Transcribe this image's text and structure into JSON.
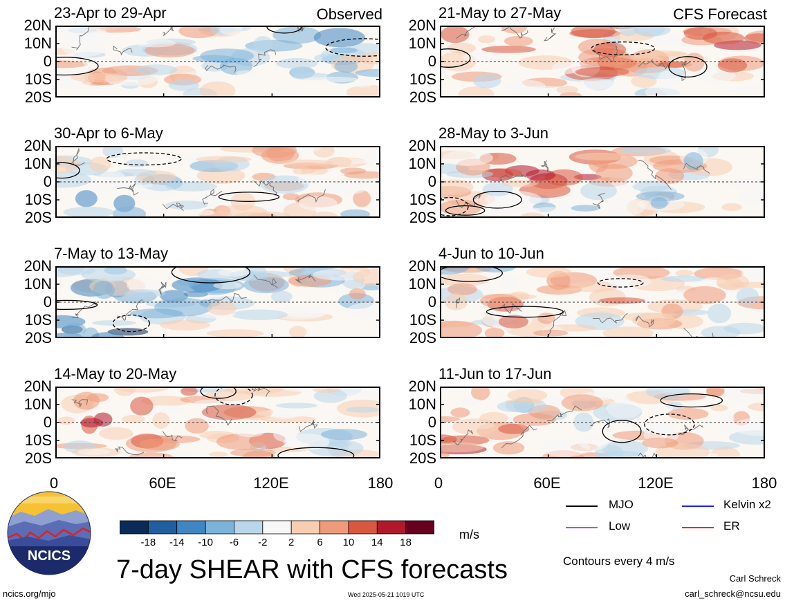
{
  "panels": [
    {
      "title": "23-Apr to 29-Apr",
      "corner_label": "Observed"
    },
    {
      "title": "30-Apr to 6-May",
      "corner_label": ""
    },
    {
      "title": "7-May to 13-May",
      "corner_label": ""
    },
    {
      "title": "14-May to 20-May",
      "corner_label": ""
    },
    {
      "title": "21-May to 27-May",
      "corner_label": "CFS Forecast"
    },
    {
      "title": "28-May to 3-Jun",
      "corner_label": ""
    },
    {
      "title": "4-Jun to 10-Jun",
      "corner_label": ""
    },
    {
      "title": "11-Jun to 17-Jun",
      "corner_label": ""
    }
  ],
  "lat_labels": [
    "20N",
    "10N",
    "0",
    "10S",
    "20S"
  ],
  "lon_labels": [
    "0",
    "60E",
    "120E",
    "180"
  ],
  "colorbar": {
    "ticks": [
      "-18",
      "-14",
      "-10",
      "-6",
      "-2",
      "2",
      "6",
      "10",
      "14",
      "18"
    ],
    "units": "m/s",
    "colors": [
      "#0a2b59",
      "#1f5fa0",
      "#3f87c2",
      "#7cb3da",
      "#b9d7eb",
      "#f7f7f7",
      "#f8cdb2",
      "#ef9a7a",
      "#d9583f",
      "#b2182b",
      "#67001f"
    ]
  },
  "legend": {
    "items": [
      {
        "label": "MJO",
        "color": "#000000"
      },
      {
        "label": "Kelvin x2",
        "color": "#1f1fff"
      },
      {
        "label": "Low",
        "color": "#a050ff"
      },
      {
        "label": "ER",
        "color": "#ff2020"
      }
    ],
    "note": "Contours every 4 m/s"
  },
  "title": "7-day SHEAR with CFS forecasts",
  "footer": {
    "url": "ncics.org/mjo",
    "timestamp": "Wed 2025-05-21 1019 UTC",
    "author": "Carl Schreck",
    "email": "carl_schreck@ncsu.edu"
  },
  "logo": {
    "text": "NCICS"
  },
  "chart_data": {
    "type": "heatmap",
    "variable": "7-day SHEAR",
    "units": "m/s",
    "x_axis": {
      "ticks": [
        "0",
        "60E",
        "120E",
        "180"
      ],
      "range": [
        0,
        180
      ]
    },
    "y_axis": {
      "ticks": [
        "20N",
        "10N",
        "0",
        "10S",
        "20S"
      ],
      "range": [
        -20,
        20
      ]
    },
    "color_levels": [
      -18,
      -14,
      -10,
      -6,
      -2,
      2,
      6,
      10,
      14,
      18
    ],
    "contour_interval": 4,
    "panels": [
      {
        "period": "23-Apr to 29-Apr",
        "source": "Observed"
      },
      {
        "period": "30-Apr to 6-May",
        "source": "Observed"
      },
      {
        "period": "7-May to 13-May",
        "source": "Observed"
      },
      {
        "period": "14-May to 20-May",
        "source": "Observed"
      },
      {
        "period": "21-May to 27-May",
        "source": "CFS Forecast"
      },
      {
        "period": "28-May to 3-Jun",
        "source": "CFS Forecast"
      },
      {
        "period": "4-Jun to 10-Jun",
        "source": "CFS Forecast"
      },
      {
        "period": "11-Jun to 17-Jun",
        "source": "CFS Forecast"
      }
    ]
  }
}
